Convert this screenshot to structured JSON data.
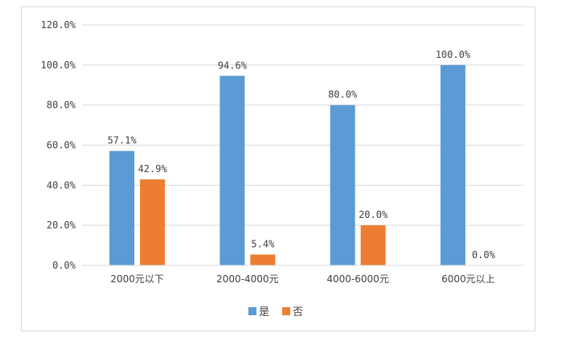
{
  "chart_data": {
    "type": "bar",
    "categories": [
      "2000元以下",
      "2000-4000元",
      "4000-6000元",
      "6000元以上"
    ],
    "series": [
      {
        "name": "是",
        "values": [
          57.1,
          94.6,
          80.0,
          100.0
        ],
        "labels": [
          "57.1%",
          "94.6%",
          "80.0%",
          "100.0%"
        ],
        "color": "#5b9bd5"
      },
      {
        "name": "否",
        "values": [
          42.9,
          5.4,
          20.0,
          0.0
        ],
        "labels": [
          "42.9%",
          "5.4%",
          "20.0%",
          "0.0%"
        ],
        "color": "#ed7d31"
      }
    ],
    "ylim": [
      0,
      120
    ],
    "yticks": [
      {
        "value": 0,
        "label": "0.0%"
      },
      {
        "value": 20,
        "label": "20.0%"
      },
      {
        "value": 40,
        "label": "40.0%"
      },
      {
        "value": 60,
        "label": "60.0%"
      },
      {
        "value": 80,
        "label": "80.0%"
      },
      {
        "value": 100,
        "label": "100.0%"
      },
      {
        "value": 120,
        "label": "120.0%"
      }
    ],
    "grid": true,
    "legend": "bottom-center",
    "title": "",
    "xlabel": "",
    "ylabel": ""
  }
}
